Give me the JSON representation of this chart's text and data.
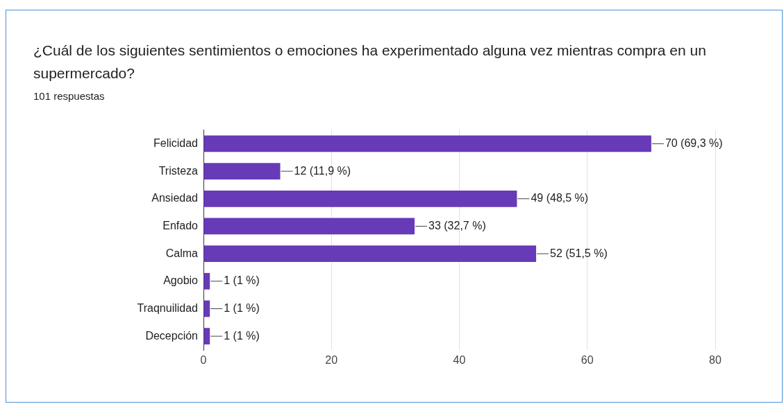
{
  "chart_data": {
    "type": "bar",
    "orientation": "horizontal",
    "title": "¿Cuál de los siguientes sentimientos o emociones ha experimentado alguna vez mientras compra en un supermercado?",
    "subtitle": "101 respuestas",
    "categories": [
      "Felicidad",
      "Tristeza",
      "Ansiedad",
      "Enfado",
      "Calma",
      "Agobio",
      "Traqnuilidad",
      "Decepción"
    ],
    "values": [
      70,
      12,
      49,
      33,
      52,
      1,
      1,
      1
    ],
    "value_labels": [
      "70 (69,3 %)",
      "12 (11,9 %)",
      "49 (48,5 %)",
      "33 (32,7 %)",
      "52 (51,5 %)",
      "1 (1 %)",
      "1 (1 %)",
      "1 (1 %)"
    ],
    "color": "#673ab7",
    "xlim": [
      0,
      80
    ],
    "xticks": [
      0,
      20,
      40,
      60,
      80
    ],
    "grid": "x"
  }
}
